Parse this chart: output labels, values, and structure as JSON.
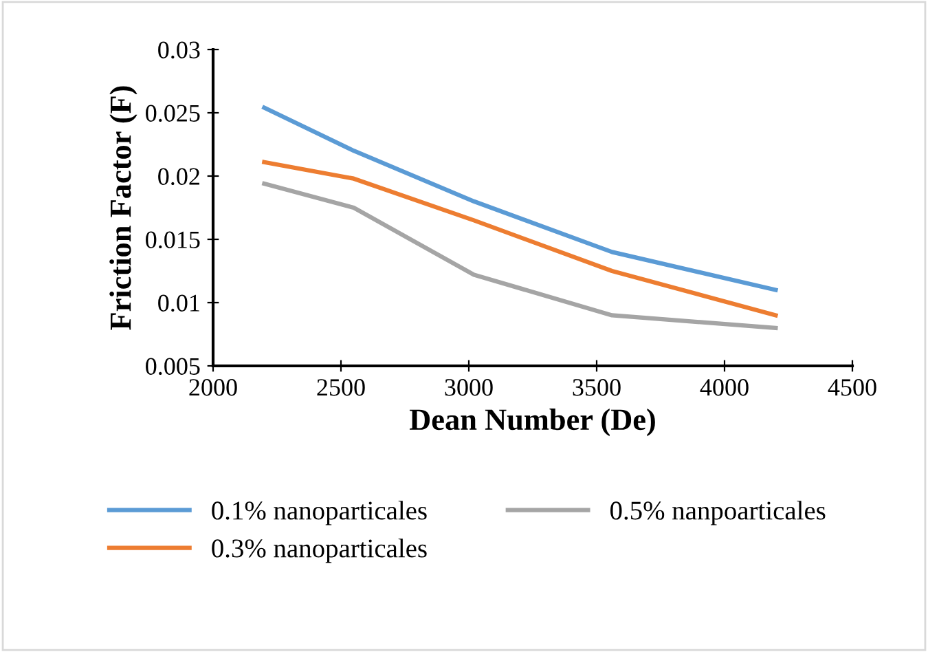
{
  "chart_data": {
    "type": "line",
    "xlabel": "Dean Number (De)",
    "ylabel": "Friction Factor (F)",
    "xlim": [
      2000,
      4500
    ],
    "xticks": [
      2000,
      2500,
      3000,
      3500,
      4000,
      4500
    ],
    "ylim": [
      0.005,
      0.03
    ],
    "yticks": [
      0.005,
      0.01,
      0.015,
      0.02,
      0.025,
      0.03
    ],
    "grid": false,
    "legend": "bottom",
    "marker": "none",
    "line_style": "solid",
    "x": [
      2200,
      2550,
      3020,
      3560,
      4200
    ],
    "series": [
      {
        "name": "0.1% nanoparticales",
        "color": "#5b9bd5",
        "values": [
          0.0254,
          0.022,
          0.018,
          0.014,
          0.011
        ]
      },
      {
        "name": "0.3% nanoparticales",
        "color": "#ed7d31",
        "values": [
          0.0211,
          0.0198,
          0.0165,
          0.0125,
          0.009
        ]
      },
      {
        "name": "0.5% nanpoarticales",
        "color": "#a5a5a5",
        "values": [
          0.0194,
          0.0175,
          0.0122,
          0.009,
          0.008
        ]
      }
    ]
  }
}
